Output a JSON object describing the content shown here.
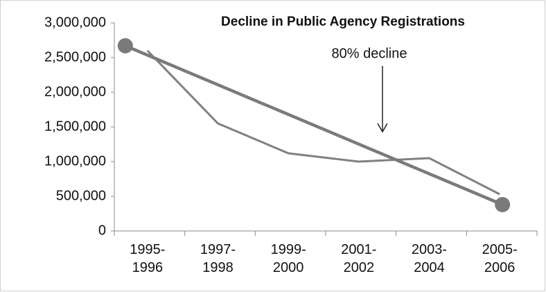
{
  "chart_data": {
    "type": "line",
    "title": "Decline in Public Agency Registrations",
    "categories": [
      "1995-1996",
      "1997-1998",
      "1999-2000",
      "2001-2002",
      "2003-2004",
      "2005-2006"
    ],
    "series": [
      {
        "color": "#808080",
        "values": [
          2600000,
          1550000,
          1120000,
          1000000,
          1050000,
          530000
        ]
      }
    ],
    "trend": {
      "color": "#7a7a7a",
      "start": 2670000,
      "end": 380000
    },
    "annotation": "80% decline",
    "ylim": [
      0,
      3000000
    ],
    "yticks": [
      0,
      {
        "value": 500000,
        "label": "500,000"
      },
      {
        "value": 1000000,
        "label": "1,000,000"
      },
      {
        "value": 1500000,
        "label": "1,500,000"
      },
      {
        "value": 2000000,
        "label": "2,000,000"
      },
      {
        "value": 2500000,
        "label": "2,500,000"
      },
      {
        "value": 3000000,
        "label": "3,000,000"
      }
    ],
    "grid": false
  }
}
